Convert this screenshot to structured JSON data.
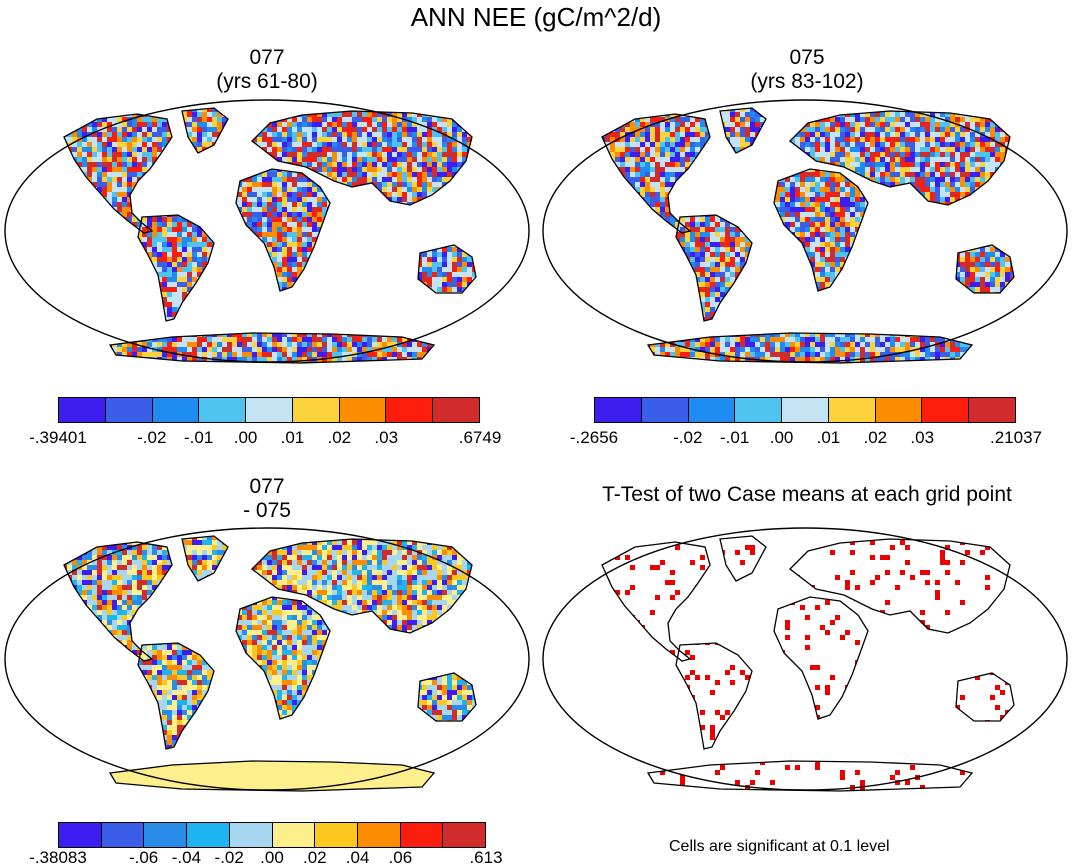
{
  "title": "ANN NEE (gC/m^2/d)",
  "panels": [
    {
      "id": "p1",
      "title_line1": "077",
      "title_line2": "(yrs 61-80)",
      "colors": [
        "#3c1ef0",
        "#3a5ee8",
        "#1e8cf0",
        "#4fc3f0",
        "#c4e4f4",
        "#fcd23a",
        "#fc8c00",
        "#fc1e0c",
        "#d22b2b"
      ],
      "labels": [
        "-.39401",
        "-.02",
        "-.01",
        ".00",
        ".01",
        ".02",
        ".03",
        ".6749"
      ],
      "mix": [
        "#c4e4f4",
        "#c4e4f4",
        "#4fc3f0",
        "#fcd23a",
        "#fc8c00",
        "#fc1e0c",
        "#d22b2b",
        "#1e8cf0",
        "#3a5ee8",
        "#3c1ef0"
      ]
    },
    {
      "id": "p2",
      "title_line1": "075",
      "title_line2": "(yrs 83-102)",
      "colors": [
        "#3c1ef0",
        "#3a5ee8",
        "#1e8cf0",
        "#4fc3f0",
        "#c4e4f4",
        "#fcd23a",
        "#fc8c00",
        "#fc1e0c",
        "#d22b2b"
      ],
      "labels": [
        "-.2656",
        "-.02",
        "-.01",
        ".00",
        ".01",
        ".02",
        ".03",
        ".21037"
      ],
      "mix": [
        "#c4e4f4",
        "#c4e4f4",
        "#4fc3f0",
        "#fcd23a",
        "#fc8c00",
        "#fc1e0c",
        "#d22b2b",
        "#1e8cf0",
        "#3a5ee8",
        "#3c1ef0"
      ]
    },
    {
      "id": "p3",
      "title_line1": "077",
      "title_line2": "- 075",
      "colors": [
        "#3c1ef0",
        "#3a5ee8",
        "#2a8ce8",
        "#1eb4f0",
        "#a6d6f0",
        "#fdf08c",
        "#fcc81e",
        "#fc8c00",
        "#fc1e0c",
        "#d22b2b"
      ],
      "labels": [
        "-.38083",
        "-.06",
        "-.04",
        "-.02",
        ".00",
        ".02",
        ".04",
        ".06",
        ".613"
      ],
      "mix": [
        "#a6d6f0",
        "#fdf08c",
        "#fdf08c",
        "#a6d6f0",
        "#fcc81e",
        "#1eb4f0",
        "#2a8ce8",
        "#fc8c00",
        "#d22b2b",
        "#3c1ef0"
      ]
    },
    {
      "id": "p4",
      "title": "T-Test of two Case means at each grid point",
      "note": "Cells are significant at 0.1 level",
      "sig_color": "#ee0000"
    }
  ]
}
